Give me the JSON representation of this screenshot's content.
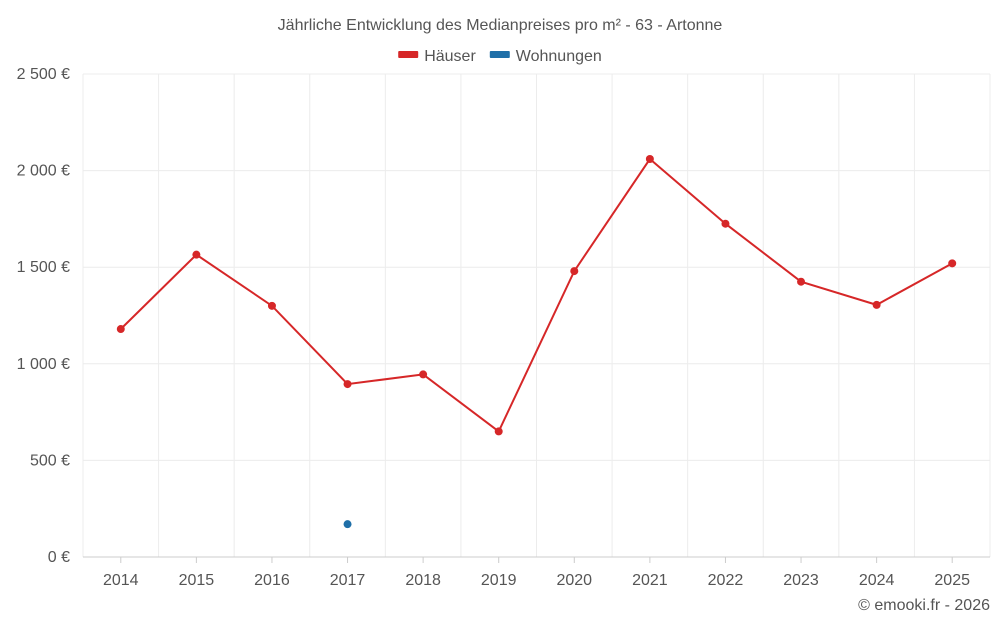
{
  "chart_data": {
    "type": "line",
    "title": "Jährliche Entwicklung des Medianpreises pro m² - 63 - Artonne",
    "categories": [
      "2014",
      "2015",
      "2016",
      "2017",
      "2018",
      "2019",
      "2020",
      "2021",
      "2022",
      "2023",
      "2024",
      "2025"
    ],
    "series": [
      {
        "name": "Häuser",
        "color": "#d62728",
        "values": [
          1180,
          1565,
          1300,
          895,
          945,
          650,
          1480,
          2060,
          1725,
          1425,
          1305,
          1520
        ]
      },
      {
        "name": "Wohnungen",
        "color": "#1f6fa8",
        "values": [
          null,
          null,
          null,
          170,
          null,
          null,
          null,
          null,
          null,
          null,
          null,
          null
        ]
      }
    ],
    "ylim": [
      0,
      2500
    ],
    "yticks": [
      0,
      500,
      1000,
      1500,
      2000,
      2500
    ],
    "ytick_labels": [
      "0 €",
      "500 €",
      "1 000 €",
      "1 500 €",
      "2 000 €",
      "2 500 €"
    ],
    "xlabel": "",
    "ylabel": "",
    "legend_position": "top-center",
    "grid": true
  },
  "copyright": "© emooki.fr - 2026"
}
